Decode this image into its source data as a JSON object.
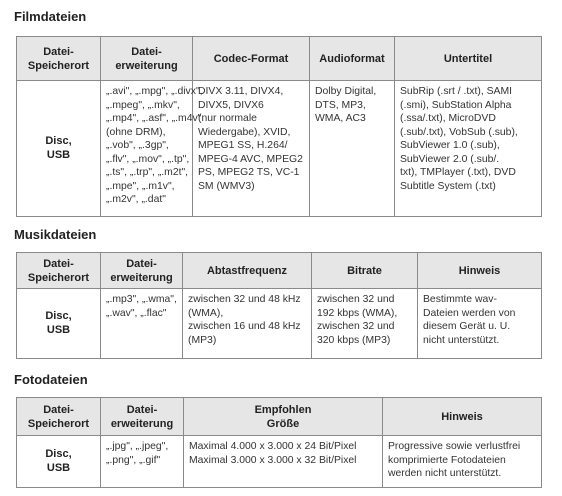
{
  "sections": [
    {
      "title": "Filmdateien",
      "headers": [
        [
          "Datei-",
          "Speicherort"
        ],
        [
          "Datei-",
          "erweiterung"
        ],
        [
          "Codec-Format"
        ],
        [
          "Audioformat"
        ],
        [
          "Untertitel"
        ]
      ],
      "location": [
        "Disc,",
        "USB"
      ],
      "cells": [
        [
          "„.avi\", „.mpg\", „.divx\",",
          "„.mpeg\", „.mkv\",",
          "„.mp4\", „.asf\", „.m4v\"",
          "(ohne DRM),",
          "„.vob\", „.3gp\",",
          "„.flv\", „.mov\", „.tp\",",
          "„.ts\", „.trp\", „.m2t\",",
          "„.mpe\", „.m1v\",",
          "„.m2v\", „.dat\""
        ],
        [
          "DIVX 3.11, DIVX4,",
          "DIVX5, DIVX6",
          "(nur normale",
          "Wiedergabe), XVID,",
          "MPEG1 SS, H.264/",
          "MPEG-4 AVC, MPEG2",
          "PS, MPEG2 TS, VC-1",
          "SM (WMV3)"
        ],
        [
          "Dolby Digital,",
          "DTS, MP3,",
          "WMA, AC3"
        ],
        [
          "SubRip (.srt / .txt), SAMI",
          "(.smi), SubStation Alpha",
          "(.ssa/.txt), MicroDVD",
          "(.sub/.txt), VobSub (.sub),",
          "SubViewer 1.0 (.sub),",
          "SubViewer 2.0 (.sub/.",
          "txt), TMPlayer (.txt), DVD",
          "Subtitle System (.txt)"
        ]
      ]
    },
    {
      "title": "Musikdateien",
      "headers": [
        [
          "Datei-",
          "Speicherort"
        ],
        [
          "Datei-",
          "erweiterung"
        ],
        [
          "Abtastfrequenz"
        ],
        [
          "Bitrate"
        ],
        [
          "Hinweis"
        ]
      ],
      "location": [
        "Disc,",
        "USB"
      ],
      "cells": [
        [
          "„.mp3\", „.wma\",",
          "„.wav\", „.flac\""
        ],
        [
          "zwischen 32 und 48 kHz",
          "(WMA),",
          "zwischen 16 und 48 kHz",
          "(MP3)"
        ],
        [
          "zwischen 32 und",
          "192 kbps (WMA),",
          "zwischen 32 und",
          "320 kbps (MP3)"
        ],
        [
          "Bestimmte wav-",
          "Dateien werden von",
          "diesem Gerät u. U.",
          "nicht unterstützt."
        ]
      ]
    },
    {
      "title": "Fotodateien",
      "headers": [
        [
          "Datei-",
          "Speicherort"
        ],
        [
          "Datei-",
          "erweiterung"
        ],
        [
          "Empfohlen",
          "Größe"
        ],
        [
          "Hinweis"
        ]
      ],
      "location": [
        "Disc,",
        "USB"
      ],
      "cells": [
        [
          "„.jpg\", „.jpeg\",",
          "„.png\", „.gif\""
        ],
        [
          "Maximal 4.000 x 3.000 x 24 Bit/Pixel",
          "Maximal 3.000 x 3.000 x 32 Bit/Pixel"
        ],
        [
          "Progressive sowie verlustfrei",
          "komprimierte Fotodateien",
          "werden nicht unterstützt."
        ]
      ]
    }
  ]
}
